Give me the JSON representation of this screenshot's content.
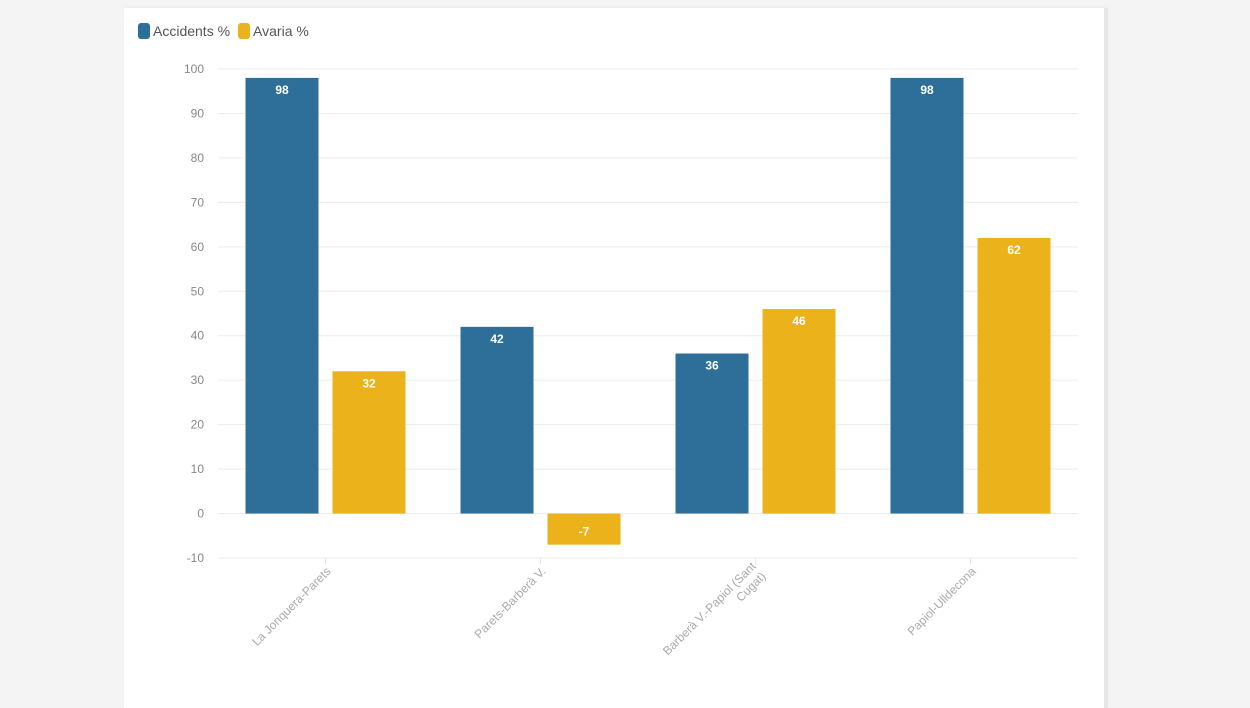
{
  "chart_data": {
    "type": "bar",
    "title": "",
    "xlabel": "",
    "ylabel": "",
    "categories": [
      "La Jonquera-Parets",
      "Parets-Barberà V.",
      "Barberà V.-Papiol (Sant Cugat)",
      "Papiol-Ulldecona"
    ],
    "category_lines": [
      [
        "La Jonquera-Parets"
      ],
      [
        "Parets-Barberà V."
      ],
      [
        "Barberà V.-Papiol (Sant",
        "Cugat)"
      ],
      [
        "Papiol-Ulldecona"
      ]
    ],
    "series": [
      {
        "name": "Accidents %",
        "color": "#2e6f99",
        "values": [
          98,
          42,
          36,
          98
        ]
      },
      {
        "name": "Avaria %",
        "color": "#ebb21c",
        "values": [
          32,
          -7,
          46,
          62
        ]
      }
    ],
    "ylim": [
      -10,
      100
    ],
    "yticks": [
      100,
      90,
      80,
      70,
      60,
      50,
      40,
      30,
      20,
      10,
      0,
      -10
    ],
    "grid": true,
    "legend_position": "top-left"
  }
}
